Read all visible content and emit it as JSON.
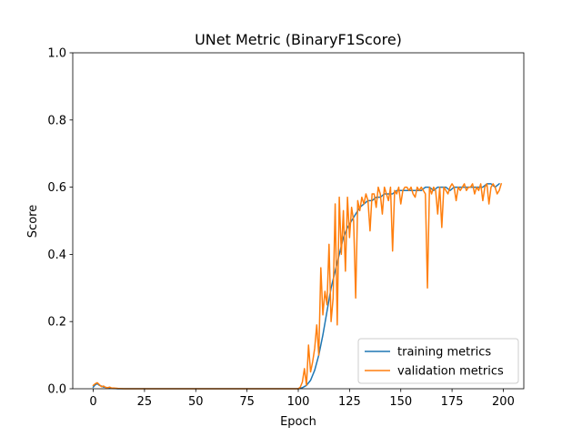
{
  "chart_data": {
    "type": "line",
    "title": "UNet Metric (BinaryF1Score)",
    "xlabel": "Epoch",
    "ylabel": "Score",
    "xlim": [
      -10,
      210
    ],
    "ylim": [
      0.0,
      1.0
    ],
    "xticks": [
      0,
      25,
      50,
      75,
      100,
      125,
      150,
      175,
      200
    ],
    "xtick_labels": [
      "0",
      "25",
      "50",
      "75",
      "100",
      "125",
      "150",
      "175",
      "200"
    ],
    "yticks": [
      0.0,
      0.2,
      0.4,
      0.6,
      0.8,
      1.0
    ],
    "ytick_labels": [
      "0.0",
      "0.2",
      "0.4",
      "0.6",
      "0.8",
      "1.0"
    ],
    "grid": false,
    "legend_position": "lower-right",
    "series": [
      {
        "name": "training metrics",
        "color": "#1f77b4",
        "x": [
          0,
          1,
          2,
          3,
          4,
          5,
          6,
          7,
          8,
          9,
          10,
          12,
          15,
          20,
          30,
          50,
          80,
          95,
          100,
          102,
          104,
          106,
          108,
          110,
          112,
          114,
          116,
          118,
          120,
          122,
          124,
          126,
          128,
          130,
          132,
          134,
          136,
          138,
          140,
          142,
          144,
          146,
          148,
          150,
          152,
          154,
          156,
          158,
          160,
          162,
          164,
          166,
          168,
          170,
          172,
          174,
          176,
          178,
          180,
          182,
          184,
          186,
          188,
          190,
          192,
          194,
          196,
          198
        ],
        "y": [
          0.005,
          0.012,
          0.015,
          0.01,
          0.008,
          0.005,
          0.004,
          0.003,
          0.002,
          0.002,
          0.001,
          0.0,
          0.0,
          0.0,
          0.0,
          0.0,
          0.0,
          0.0,
          0.0,
          0.003,
          0.01,
          0.025,
          0.055,
          0.1,
          0.16,
          0.23,
          0.3,
          0.35,
          0.4,
          0.45,
          0.48,
          0.5,
          0.52,
          0.54,
          0.55,
          0.56,
          0.56,
          0.57,
          0.57,
          0.58,
          0.58,
          0.58,
          0.59,
          0.59,
          0.59,
          0.59,
          0.59,
          0.59,
          0.59,
          0.6,
          0.6,
          0.59,
          0.6,
          0.6,
          0.6,
          0.59,
          0.6,
          0.6,
          0.6,
          0.6,
          0.6,
          0.6,
          0.6,
          0.6,
          0.61,
          0.61,
          0.6,
          0.61
        ]
      },
      {
        "name": "validation metrics",
        "color": "#ff7f0e",
        "x": [
          0,
          1,
          2,
          3,
          4,
          5,
          6,
          7,
          8,
          9,
          10,
          12,
          15,
          20,
          30,
          50,
          80,
          95,
          100,
          101,
          102,
          103,
          104,
          105,
          106,
          107,
          108,
          109,
          110,
          111,
          112,
          113,
          114,
          115,
          116,
          117,
          118,
          119,
          120,
          121,
          122,
          123,
          124,
          125,
          126,
          127,
          128,
          129,
          130,
          131,
          132,
          133,
          134,
          135,
          136,
          137,
          138,
          139,
          140,
          141,
          142,
          143,
          144,
          145,
          146,
          147,
          148,
          149,
          150,
          151,
          152,
          153,
          154,
          155,
          156,
          157,
          158,
          159,
          160,
          161,
          162,
          163,
          164,
          165,
          166,
          167,
          168,
          169,
          170,
          171,
          172,
          173,
          174,
          175,
          176,
          177,
          178,
          179,
          180,
          181,
          182,
          183,
          184,
          185,
          186,
          187,
          188,
          189,
          190,
          191,
          192,
          193,
          194,
          195,
          196,
          197,
          198,
          199
        ],
        "y": [
          0.01,
          0.015,
          0.018,
          0.012,
          0.006,
          0.008,
          0.004,
          0.003,
          0.005,
          0.002,
          0.002,
          0.001,
          0.0,
          0.0,
          0.0,
          0.0,
          0.0,
          0.0,
          0.0,
          0.005,
          0.02,
          0.06,
          0.01,
          0.13,
          0.05,
          0.08,
          0.12,
          0.19,
          0.1,
          0.36,
          0.22,
          0.29,
          0.25,
          0.43,
          0.2,
          0.27,
          0.55,
          0.19,
          0.57,
          0.4,
          0.53,
          0.35,
          0.57,
          0.45,
          0.54,
          0.5,
          0.27,
          0.56,
          0.53,
          0.57,
          0.55,
          0.58,
          0.56,
          0.47,
          0.58,
          0.58,
          0.54,
          0.6,
          0.58,
          0.52,
          0.6,
          0.58,
          0.56,
          0.6,
          0.41,
          0.59,
          0.58,
          0.6,
          0.55,
          0.59,
          0.6,
          0.6,
          0.59,
          0.6,
          0.58,
          0.57,
          0.6,
          0.59,
          0.6,
          0.59,
          0.58,
          0.3,
          0.6,
          0.58,
          0.6,
          0.59,
          0.52,
          0.6,
          0.48,
          0.6,
          0.59,
          0.58,
          0.6,
          0.61,
          0.6,
          0.56,
          0.6,
          0.59,
          0.6,
          0.61,
          0.59,
          0.6,
          0.6,
          0.61,
          0.58,
          0.6,
          0.59,
          0.61,
          0.56,
          0.6,
          0.61,
          0.55,
          0.6,
          0.61,
          0.6,
          0.58,
          0.59,
          0.61
        ]
      }
    ]
  }
}
